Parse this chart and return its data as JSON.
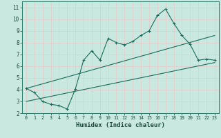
{
  "xlabel": "Humidex (Indice chaleur)",
  "bg_color": "#c8e8e0",
  "plot_bg_color": "#c8e8e0",
  "grid_color": "#e8f8f8",
  "line_color": "#1a6b5a",
  "spine_color": "#2a7a6a",
  "xlim": [
    -0.5,
    23.5
  ],
  "ylim": [
    2,
    11.5
  ],
  "xticks": [
    0,
    1,
    2,
    3,
    4,
    5,
    6,
    7,
    8,
    9,
    10,
    11,
    12,
    13,
    14,
    15,
    16,
    17,
    18,
    19,
    20,
    21,
    22,
    23
  ],
  "yticks": [
    2,
    3,
    4,
    5,
    6,
    7,
    8,
    9,
    10,
    11
  ],
  "main_line_x": [
    0,
    1,
    2,
    3,
    4,
    5,
    6,
    7,
    8,
    9,
    10,
    11,
    12,
    13,
    14,
    15,
    16,
    17,
    18,
    19,
    20,
    21,
    22,
    23
  ],
  "main_line_y": [
    4.1,
    3.75,
    3.0,
    2.75,
    2.65,
    2.35,
    4.05,
    6.5,
    7.3,
    6.5,
    8.35,
    8.0,
    7.8,
    8.1,
    8.6,
    9.0,
    10.3,
    10.85,
    9.65,
    8.6,
    7.85,
    6.5,
    6.6,
    6.5
  ],
  "line2_x": [
    0,
    23
  ],
  "line2_y": [
    3.0,
    6.3
  ],
  "line3_x": [
    0,
    23
  ],
  "line3_y": [
    4.1,
    8.6
  ]
}
